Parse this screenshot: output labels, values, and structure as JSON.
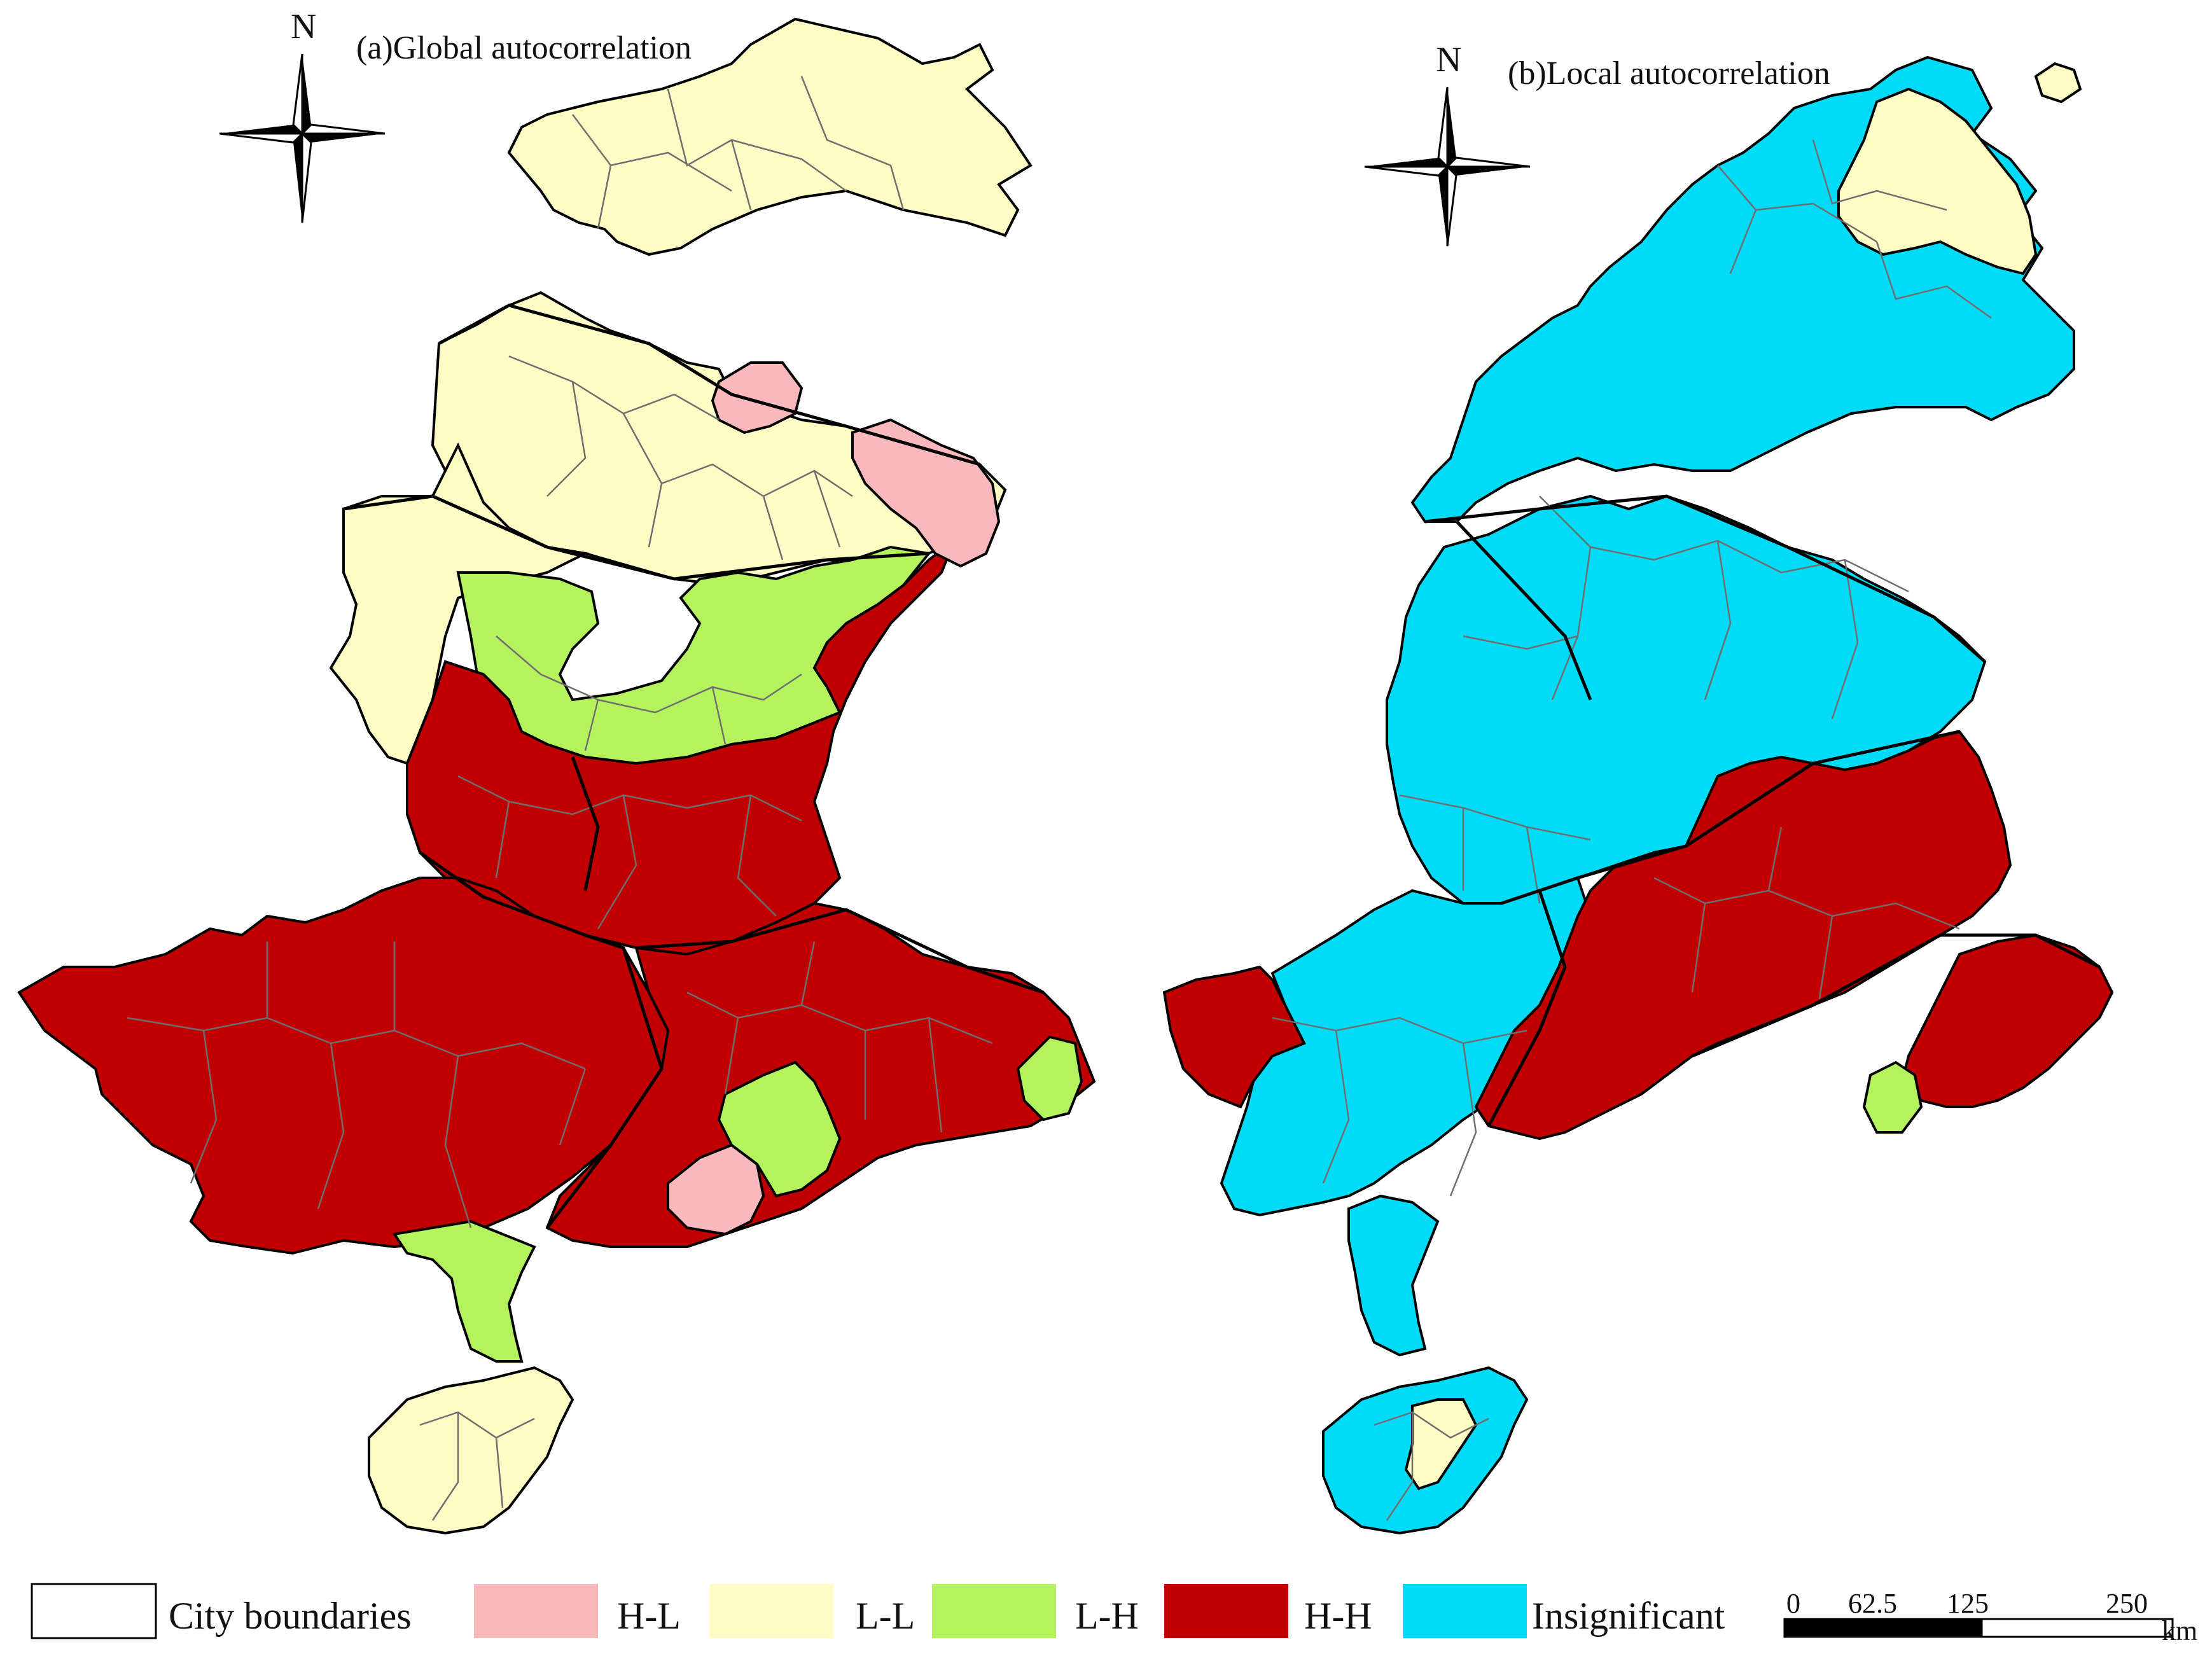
{
  "maps": [
    {
      "title": "(a)Global autocorrelation",
      "north_label": "N",
      "regions": [
        {
          "name": "north-region",
          "category": "L-L"
        },
        {
          "name": "central-north-region",
          "category": "L-L"
        },
        {
          "name": "west-mid-region",
          "category": "L-L"
        },
        {
          "name": "central-band-region",
          "category": "L-H"
        },
        {
          "name": "central-south-region",
          "category": "H-H"
        },
        {
          "name": "southwest-region",
          "category": "H-H"
        },
        {
          "name": "southeast-region",
          "category": "H-H"
        },
        {
          "name": "hotspot-pink-north",
          "category": "H-L"
        },
        {
          "name": "hotspot-pink-east",
          "category": "H-L"
        },
        {
          "name": "hotspot-pink-coast",
          "category": "H-L"
        },
        {
          "name": "coast-green-region",
          "category": "L-H"
        },
        {
          "name": "peninsula-region",
          "category": "L-H"
        },
        {
          "name": "island-region",
          "category": "L-L"
        }
      ]
    },
    {
      "title": "(b)Local autocorrelation",
      "north_label": "N",
      "regions": [
        {
          "name": "north-region",
          "category": "Insignificant"
        },
        {
          "name": "northeast-cluster",
          "category": "L-L"
        },
        {
          "name": "central-region",
          "category": "Insignificant"
        },
        {
          "name": "core-hotspot",
          "category": "H-H"
        },
        {
          "name": "west-hotspot",
          "category": "H-H"
        },
        {
          "name": "east-hotspot",
          "category": "H-H"
        },
        {
          "name": "southwest-region",
          "category": "Insignificant"
        },
        {
          "name": "coast-green",
          "category": "L-H"
        },
        {
          "name": "peninsula-region",
          "category": "Insignificant"
        },
        {
          "name": "island-region",
          "category": "Insignificant"
        },
        {
          "name": "island-coldspot",
          "category": "L-L"
        }
      ]
    }
  ],
  "legend": [
    {
      "label": "City boundaries",
      "color": "#ffffff"
    },
    {
      "label": "H-L",
      "color": "#f9b8bb"
    },
    {
      "label": "L-L",
      "color": "#fdfcc4"
    },
    {
      "label": "L-H",
      "color": "#b4f35e"
    },
    {
      "label": "H-H",
      "color": "#c00000"
    },
    {
      "label": "Insignificant",
      "color": "#00dcf8"
    }
  ],
  "colors": {
    "H-L": "#f9b8bb",
    "L-L": "#fdfcc4",
    "L-H": "#b4f35e",
    "H-H": "#c00000",
    "Insignificant": "#00dcf8"
  },
  "scale_bar": {
    "ticks": [
      "0",
      "62.5",
      "125",
      "250"
    ],
    "unit": "km"
  }
}
